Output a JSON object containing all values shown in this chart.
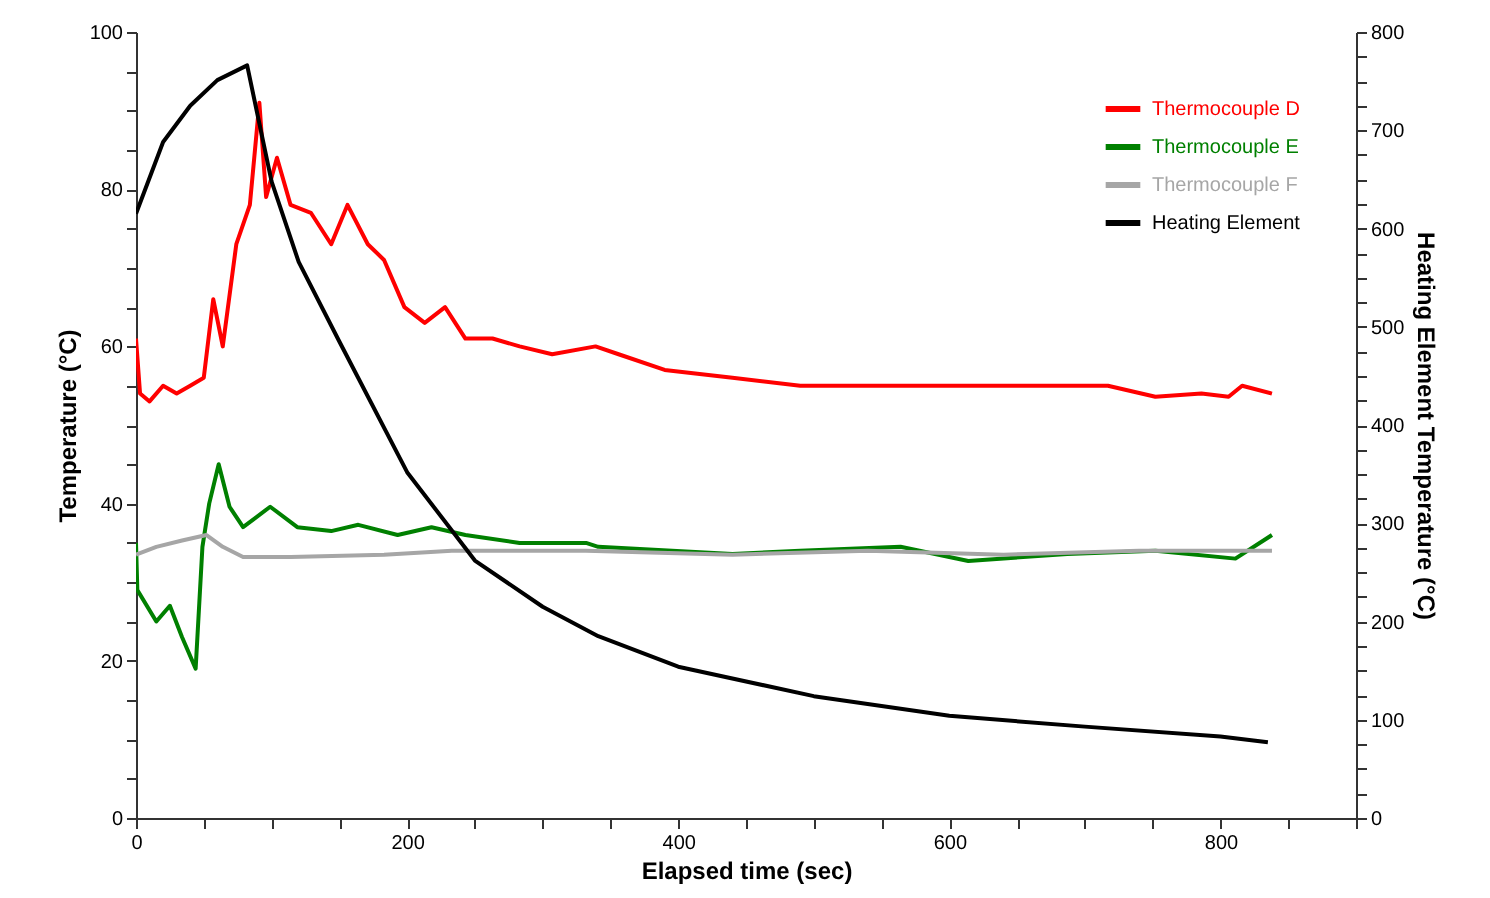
{
  "chart_data": {
    "type": "line",
    "xlabel": "Elapsed time (sec)",
    "ylabel": "Temperature (°C)",
    "y2label": "Heating Element Temperature (°C)",
    "legend": "top right",
    "marker": "none",
    "line_style": "solid",
    "grid": false,
    "xlim": [
      0,
      900
    ],
    "xticks": [
      0,
      {
        "value": 50,
        "label": null
      },
      {
        "value": 100,
        "label": null
      },
      {
        "value": 150,
        "label": null
      },
      200,
      {
        "value": 250,
        "label": null
      },
      {
        "value": 300,
        "label": null
      },
      {
        "value": 350,
        "label": null
      },
      400,
      {
        "value": 450,
        "label": null
      },
      {
        "value": 500,
        "label": null
      },
      {
        "value": 550,
        "label": null
      },
      600,
      {
        "value": 650,
        "label": null
      },
      {
        "value": 700,
        "label": null
      },
      {
        "value": 750,
        "label": null
      },
      800,
      {
        "value": 850,
        "label": null
      },
      {
        "value": 900,
        "label": null
      }
    ],
    "ylim": [
      0,
      100
    ],
    "yticks": [
      0,
      {
        "value": 5,
        "label": null
      },
      {
        "value": 10,
        "label": null
      },
      {
        "value": 15,
        "label": null
      },
      20,
      {
        "value": 25,
        "label": null
      },
      {
        "value": 30,
        "label": null
      },
      {
        "value": 35,
        "label": null
      },
      40,
      {
        "value": 45,
        "label": null
      },
      {
        "value": 50,
        "label": null
      },
      {
        "value": 55,
        "label": null
      },
      60,
      {
        "value": 65,
        "label": null
      },
      {
        "value": 70,
        "label": null
      },
      {
        "value": 75,
        "label": null
      },
      80,
      {
        "value": 85,
        "label": null
      },
      {
        "value": 90,
        "label": null
      },
      {
        "value": 95,
        "label": null
      },
      100
    ],
    "y2lim": [
      0,
      800
    ],
    "y2ticks": [
      0,
      {
        "value": 25,
        "label": null
      },
      {
        "value": 50,
        "label": null
      },
      {
        "value": 75,
        "label": null
      },
      100,
      {
        "value": 125,
        "label": null
      },
      {
        "value": 150,
        "label": null
      },
      {
        "value": 175,
        "label": null
      },
      200,
      {
        "value": 225,
        "label": null
      },
      {
        "value": 250,
        "label": null
      },
      {
        "value": 275,
        "label": null
      },
      300,
      {
        "value": 325,
        "label": null
      },
      {
        "value": 350,
        "label": null
      },
      {
        "value": 375,
        "label": null
      },
      400,
      {
        "value": 425,
        "label": null
      },
      {
        "value": 450,
        "label": null
      },
      {
        "value": 475,
        "label": null
      },
      500,
      {
        "value": 525,
        "label": null
      },
      {
        "value": 550,
        "label": null
      },
      {
        "value": 575,
        "label": null
      },
      600,
      {
        "value": 625,
        "label": null
      },
      {
        "value": 650,
        "label": null
      },
      {
        "value": 675,
        "label": null
      },
      700,
      {
        "value": 725,
        "label": null
      },
      {
        "value": 750,
        "label": null
      },
      {
        "value": 775,
        "label": null
      },
      800
    ],
    "series": [
      {
        "name": "Thermocouple D",
        "color": "#ff0000",
        "x": [
          0,
          3,
          10,
          20,
          30,
          40,
          50,
          57,
          64,
          74,
          84,
          91,
          96,
          104,
          114,
          129,
          144,
          156,
          171,
          183,
          198,
          213,
          228,
          243,
          263,
          283,
          307,
          339,
          356,
          390,
          440,
          490,
          539,
          589,
          638,
          687,
          717,
          752,
          786,
          806,
          816,
          838
        ],
        "values": [
          61,
          54,
          53,
          55,
          54,
          55,
          56,
          66,
          60,
          73,
          78,
          91,
          79,
          84,
          78,
          77,
          73,
          78,
          73,
          71,
          65,
          63,
          65,
          61,
          61,
          60,
          59,
          60,
          59,
          57,
          56,
          55,
          55,
          55,
          55,
          55,
          55,
          53.6,
          54,
          53.6,
          55,
          54
        ]
      },
      {
        "name": "Thermocouple E",
        "color": "#008000",
        "x": [
          0,
          1,
          15,
          25,
          34,
          44,
          49,
          54,
          61,
          69,
          79,
          99,
          119,
          144,
          164,
          193,
          218,
          243,
          283,
          332,
          341,
          440,
          490,
          564,
          614,
          687,
          752,
          811,
          838
        ],
        "values": [
          35,
          29,
          25,
          27,
          23,
          19,
          34.5,
          40,
          45,
          39.6,
          37,
          39.6,
          37,
          36.5,
          37.3,
          36,
          37,
          36,
          35,
          35,
          34.5,
          33.6,
          34,
          34.5,
          32.7,
          33.6,
          34,
          33,
          36
        ]
      },
      {
        "name": "Thermocouple F",
        "color": "#a6a6a6",
        "x": [
          0,
          15,
          34,
          52,
          64,
          79,
          114,
          183,
          233,
          332,
          440,
          540,
          640,
          740,
          838
        ],
        "values": [
          33.5,
          34.5,
          35.3,
          36,
          34.5,
          33.2,
          33.2,
          33.5,
          34,
          34,
          33.5,
          34,
          33.5,
          34,
          34
        ]
      },
      {
        "name": "Heating Element",
        "color": "#000000",
        "axis": "y2",
        "x": [
          0,
          20,
          40,
          60,
          82,
          100,
          120,
          150,
          200,
          250,
          300,
          341,
          400,
          500,
          600,
          700,
          800,
          835
        ],
        "values": [
          615,
          688,
          725,
          751,
          766,
          648,
          566,
          485,
          352,
          262,
          215,
          185,
          154,
          124,
          104,
          93,
          83,
          77
        ]
      }
    ]
  }
}
